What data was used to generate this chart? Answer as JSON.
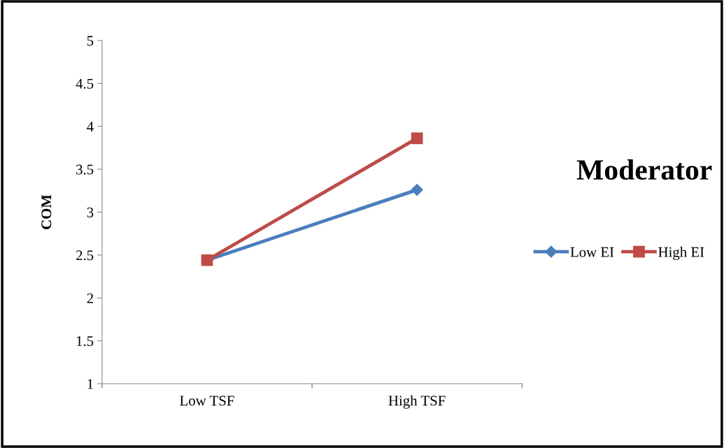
{
  "chart_data": {
    "type": "line",
    "title": "Moderator",
    "ylabel": "COM",
    "categories": [
      "Low TSF",
      "High TSF"
    ],
    "series": [
      {
        "name": "Low EI",
        "color": "#4a7ebb",
        "values": [
          2.44,
          3.26
        ],
        "marker": "diamond"
      },
      {
        "name": "High EI",
        "color": "#be4b48",
        "values": [
          2.44,
          3.86
        ],
        "marker": "square"
      }
    ],
    "ylim": [
      1,
      5
    ],
    "yticks": [
      1,
      1.5,
      2,
      2.5,
      3,
      3.5,
      4,
      4.5,
      5
    ],
    "grid": false,
    "legend": "right",
    "line_style": "solid"
  }
}
